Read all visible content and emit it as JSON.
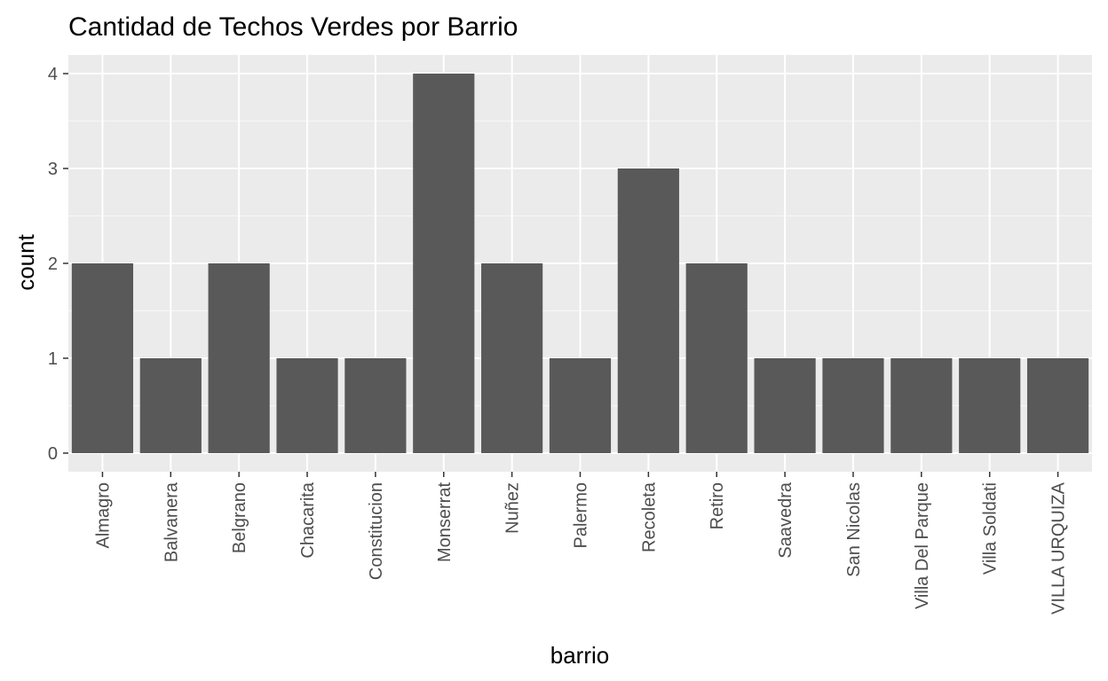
{
  "chart_data": {
    "type": "bar",
    "title": "Cantidad de Techos Verdes por Barrio",
    "xlabel": "barrio",
    "ylabel": "count",
    "categories": [
      "Almagro",
      "Balvanera",
      "Belgrano",
      "Chacarita",
      "Constitucion",
      "Monserrat",
      "Nuñez",
      "Palermo",
      "Recoleta",
      "Retiro",
      "Saavedra",
      "San Nicolas",
      "Villa Del Parque",
      "Villa Soldati",
      "VILLA URQUIZA"
    ],
    "values": [
      2,
      1,
      2,
      1,
      1,
      4,
      2,
      1,
      3,
      2,
      1,
      1,
      1,
      1,
      1
    ],
    "y_ticks": [
      "0",
      "1",
      "2",
      "3",
      "4"
    ],
    "ylim": [
      -0.2,
      4.2
    ],
    "grid": true,
    "legend": "none",
    "colors": {
      "panel_background": "#ebebeb",
      "grid_major": "#ffffff",
      "grid_minor": "#f7f7f7",
      "bar_fill": "#595959",
      "tick_color": "#333333"
    }
  }
}
